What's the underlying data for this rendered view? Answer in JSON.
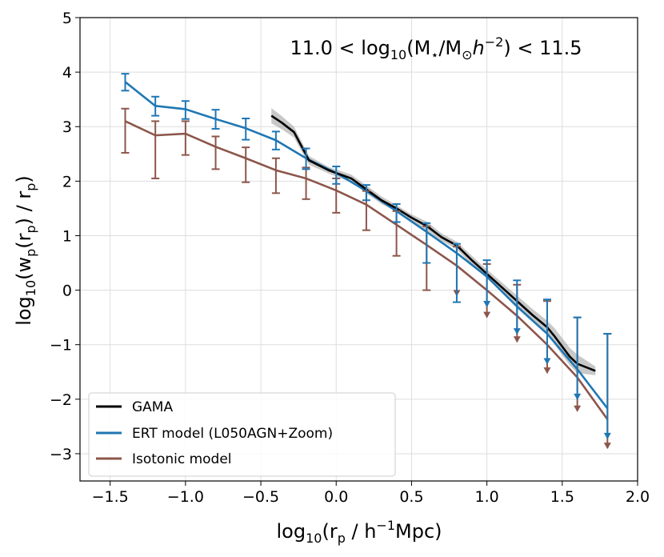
{
  "chart_data": {
    "type": "line",
    "title": "",
    "annotation": "11.0 < log₁₀(M⋆/M⊙h⁻²) < 11.5",
    "annotation_parts": {
      "prefix": "11.0 < log",
      "sub": "10",
      "mid": "(M",
      "star": "⋆",
      "slash": "/M",
      "sun": "⊙",
      "h": "h",
      "exp": "−2",
      "suffix": ") < 11.5"
    },
    "xlabel": "log₁₀(rₚ / h⁻¹Mpc)",
    "xlabel_parts": {
      "a": "log",
      "sub": "10",
      "b": "(r",
      "p": "p",
      "c": " / h",
      "exp": "−1",
      "d": "Mpc)"
    },
    "ylabel": "log₁₀(wₚ(rₚ) / rₚ)",
    "ylabel_parts": {
      "a": "log",
      "sub": "10",
      "b": "(w",
      "p1": "p",
      "c": "(r",
      "p2": "p",
      "d": ") / r",
      "p3": "p",
      "e": ")"
    },
    "xlim": [
      -1.7,
      2.0
    ],
    "ylim": [
      -3.5,
      5.0
    ],
    "xticks": [
      -1.5,
      -1.0,
      -0.5,
      0.0,
      0.5,
      1.0,
      1.5,
      2.0
    ],
    "xtick_labels": [
      "−1.5",
      "−1.0",
      "−0.5",
      "0.0",
      "0.5",
      "1.0",
      "1.5",
      "2.0"
    ],
    "yticks": [
      -3,
      -2,
      -1,
      0,
      1,
      2,
      3,
      4,
      5
    ],
    "ytick_labels": [
      "−3",
      "−2",
      "−1",
      "0",
      "1",
      "2",
      "3",
      "4",
      "5"
    ],
    "grid": true,
    "legend_position": "lower-left",
    "series": [
      {
        "name": "GAMA",
        "color": "#000000",
        "x": [
          -0.43,
          -0.36,
          -0.28,
          -0.18,
          -0.05,
          0.1,
          0.2,
          0.3,
          0.4,
          0.5,
          0.6,
          0.7,
          0.8,
          0.9,
          1.0,
          1.1,
          1.2,
          1.3,
          1.4,
          1.45,
          1.55,
          1.6,
          1.72
        ],
        "y": [
          3.2,
          3.07,
          2.9,
          2.38,
          2.2,
          2.05,
          1.85,
          1.65,
          1.5,
          1.33,
          1.18,
          0.97,
          0.82,
          0.55,
          0.3,
          0.05,
          -0.2,
          -0.45,
          -0.68,
          -0.85,
          -1.22,
          -1.35,
          -1.48
        ],
        "band_lower": [
          3.06,
          2.95,
          2.8,
          2.3,
          2.14,
          1.98,
          1.78,
          1.58,
          1.44,
          1.27,
          1.1,
          0.9,
          0.75,
          0.47,
          0.22,
          -0.04,
          -0.3,
          -0.56,
          -0.8,
          -1.0,
          -1.38,
          -1.52,
          -1.56
        ],
        "band_upper": [
          3.34,
          3.19,
          3.0,
          2.46,
          2.26,
          2.12,
          1.92,
          1.72,
          1.56,
          1.39,
          1.26,
          1.04,
          0.89,
          0.63,
          0.38,
          0.14,
          -0.1,
          -0.34,
          -0.56,
          -0.7,
          -1.06,
          -1.18,
          -1.4
        ]
      },
      {
        "name": "ERT model (L050AGN+Zoom)",
        "color": "#1f77b4",
        "x": [
          -1.4,
          -1.2,
          -1.0,
          -0.8,
          -0.6,
          -0.4,
          -0.2,
          0.0,
          0.2,
          0.4,
          0.6,
          0.8,
          1.0,
          1.2,
          1.4,
          1.6,
          1.8
        ],
        "y": [
          3.82,
          3.38,
          3.32,
          3.14,
          2.97,
          2.75,
          2.42,
          2.15,
          1.82,
          1.45,
          1.07,
          0.68,
          0.25,
          -0.3,
          -0.8,
          -1.45,
          -2.17
        ],
        "err_lower": [
          3.66,
          3.2,
          3.14,
          2.96,
          2.76,
          2.58,
          2.22,
          1.95,
          1.65,
          1.25,
          0.5,
          -0.22,
          -0.3,
          -0.8,
          -1.35,
          -2.0,
          -2.72
        ],
        "err_upper": [
          3.97,
          3.55,
          3.47,
          3.31,
          3.15,
          2.91,
          2.6,
          2.27,
          1.93,
          1.58,
          1.23,
          0.85,
          0.55,
          0.18,
          -0.17,
          -0.5,
          -0.8
        ],
        "upper_limit_arrows": [
          false,
          false,
          false,
          false,
          false,
          false,
          false,
          false,
          false,
          false,
          false,
          false,
          true,
          true,
          true,
          true,
          true
        ]
      },
      {
        "name": "Isotonic model",
        "color": "#8c564b",
        "x": [
          -1.4,
          -1.2,
          -1.0,
          -0.8,
          -0.6,
          -0.4,
          -0.2,
          0.0,
          0.2,
          0.4,
          0.6,
          0.8,
          1.0,
          1.2,
          1.4,
          1.6,
          1.8
        ],
        "y": [
          3.1,
          2.84,
          2.87,
          2.63,
          2.42,
          2.2,
          2.05,
          1.83,
          1.57,
          1.2,
          0.83,
          0.45,
          0.0,
          -0.47,
          -1.0,
          -1.6,
          -2.37
        ],
        "err_lower": [
          2.52,
          2.05,
          2.48,
          2.22,
          1.98,
          1.78,
          1.67,
          1.42,
          1.1,
          0.63,
          0.0,
          -0.1,
          -0.5,
          -0.95,
          -1.52,
          -2.22,
          -2.9
        ],
        "err_upper": [
          3.33,
          3.1,
          3.1,
          2.82,
          2.62,
          2.42,
          2.25,
          2.05,
          1.82,
          1.45,
          1.17,
          0.8,
          0.48,
          0.1,
          -0.2,
          -0.5,
          -0.8
        ],
        "upper_limit_arrows": [
          false,
          false,
          false,
          false,
          false,
          false,
          false,
          false,
          false,
          false,
          false,
          true,
          true,
          true,
          true,
          true,
          true
        ]
      }
    ]
  }
}
